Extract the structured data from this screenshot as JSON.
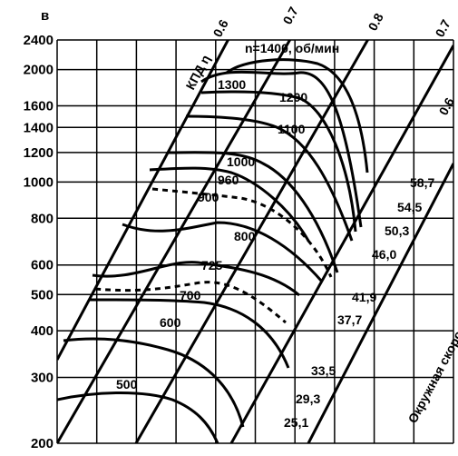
{
  "chart_data": {
    "type": "line",
    "panel_label": "в",
    "y_scale": "log",
    "ylim": [
      200,
      2400
    ],
    "y_ticks": [
      "2400",
      "2000",
      "1600",
      "1400",
      "1200",
      "1000",
      "800",
      "600",
      "500",
      "400",
      "300",
      "200"
    ],
    "grid": true,
    "speed_unit_label": "n=1400, об/мин",
    "speed_curves": [
      {
        "label": "1400",
        "peak_pressure": 2090
      },
      {
        "label": "1300",
        "peak_pressure": 1950
      },
      {
        "label": "1200",
        "peak_pressure": 1650
      },
      {
        "label": "1100",
        "peak_pressure": 1440
      },
      {
        "label": "1000",
        "peak_pressure": 1200
      },
      {
        "label": "960",
        "peak_pressure": 1090
      },
      {
        "label": "900",
        "peak_pressure": 990
      },
      {
        "label": "800",
        "peak_pressure": 790
      },
      {
        "label": "725",
        "peak_pressure": 650
      },
      {
        "label": "700",
        "peak_pressure": 600
      },
      {
        "label": "600",
        "peak_pressure": 440
      },
      {
        "label": "500",
        "peak_pressure": 300
      }
    ],
    "efficiency_label": "КПД η",
    "efficiency_lines": [
      "0.6",
      "0.7",
      "0.8",
      "0.7",
      "0.6"
    ],
    "tip_speed_label": "Окружная скорость колеса, м/с",
    "tip_speeds": [
      "58,7",
      "54,5",
      "50,3",
      "46,0",
      "41,9",
      "37,7",
      "33,5",
      "29,3",
      "25,1"
    ]
  }
}
